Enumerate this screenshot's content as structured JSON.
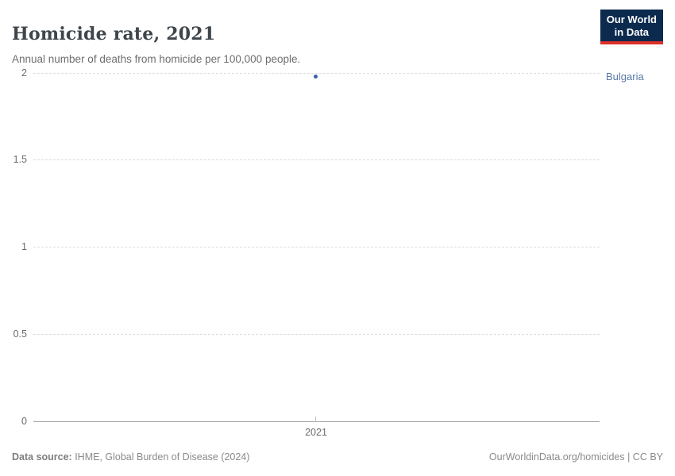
{
  "header": {
    "title": "Homicide rate, 2021",
    "subtitle": "Annual number of deaths from homicide per 100,000 people."
  },
  "logo": {
    "line1": "Our World",
    "line2": "in Data"
  },
  "chart_data": {
    "type": "scatter",
    "title": "Homicide rate, 2021",
    "xlabel": "",
    "ylabel": "",
    "x": [
      2021
    ],
    "series": [
      {
        "name": "Bulgaria",
        "values": [
          1.98
        ]
      }
    ],
    "ylim": [
      0,
      2
    ],
    "yticks": [
      0,
      0.5,
      1,
      1.5,
      2
    ],
    "xtick_labels": [
      "2021"
    ],
    "grid": "dashed-horizontal",
    "legend_position": "right-of-point",
    "point_color": "#3a61a7"
  },
  "footer": {
    "data_source_label": "Data source:",
    "data_source_value": " IHME, Global Burden of Disease (2024)",
    "credit": "OurWorldinData.org/homicides | CC BY"
  },
  "colors": {
    "point": "#3a61a7",
    "entity_label": "#5778a8",
    "logo_bg": "#0b2a4e",
    "logo_accent": "#dc3128",
    "grid": "#dedede",
    "axis": "#a8a8a8",
    "muted_text": "#8a8a8a"
  }
}
